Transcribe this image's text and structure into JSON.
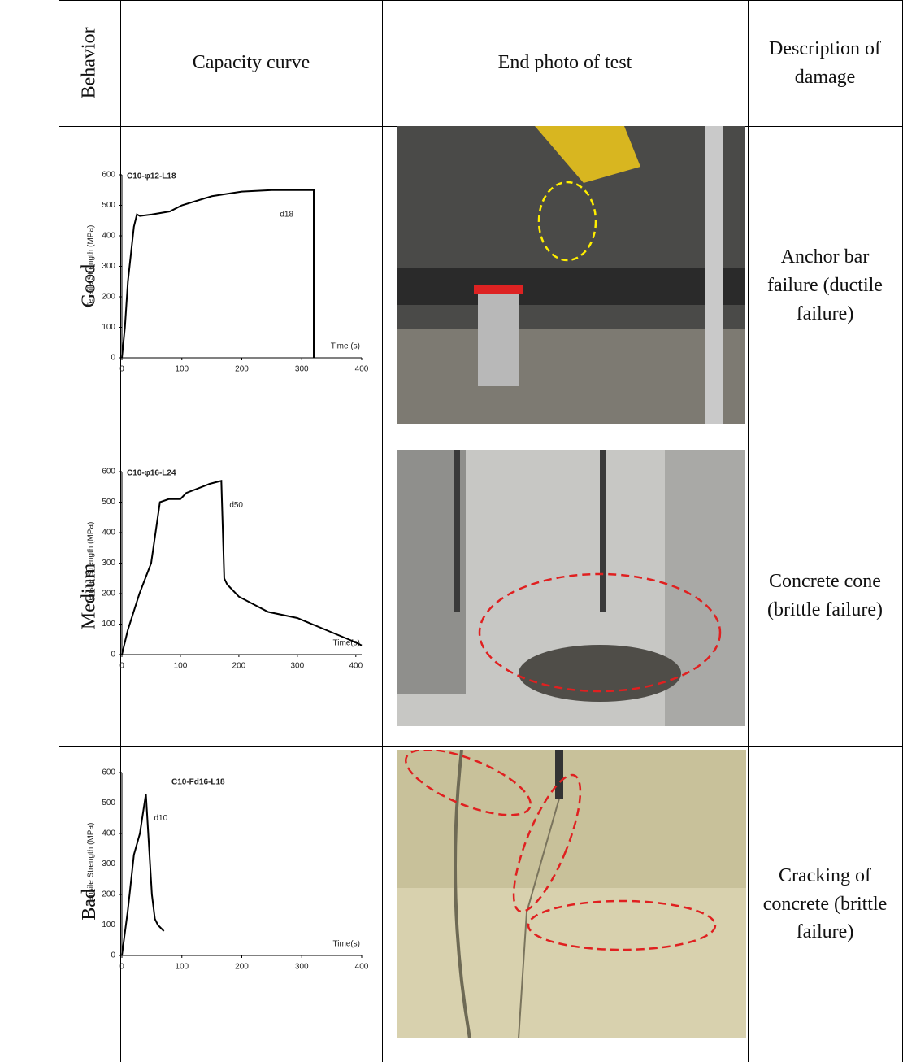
{
  "table": {
    "header": [
      "Behavior",
      "Capacity curve",
      "End photo of test",
      "Description of damage"
    ],
    "rows": [
      {
        "behavior": "Good",
        "description": "Anchor bar failure (ductile failure)",
        "chart": {
          "type": "line",
          "title": "C10-φ12-L18",
          "y_label": "Tensile Strength (MPa)",
          "x_label": "Time (s)",
          "annotation": "d18",
          "xlim": [
            0,
            400
          ],
          "ylim": [
            0,
            600
          ],
          "xticks": [
            0,
            100,
            200,
            300,
            400
          ],
          "yticks": [
            0,
            100,
            200,
            300,
            400,
            500,
            600
          ],
          "x": [
            0,
            5,
            10,
            20,
            25,
            30,
            50,
            80,
            100,
            150,
            200,
            250,
            300,
            320,
            320
          ],
          "values": [
            0,
            100,
            250,
            430,
            470,
            465,
            470,
            480,
            500,
            530,
            545,
            550,
            550,
            550,
            0
          ]
        }
      },
      {
        "behavior": "Medium",
        "description": "Concrete cone (brittle failure)",
        "chart": {
          "type": "line",
          "title": "C10-φ16-L24",
          "y_label": "Tensile Strength (MPa)",
          "x_label": "Time(s)",
          "annotation": "d50",
          "xlim": [
            0,
            410
          ],
          "ylim": [
            0,
            600
          ],
          "xticks": [
            0,
            100,
            200,
            300,
            400
          ],
          "yticks": [
            0,
            100,
            200,
            300,
            400,
            500,
            600
          ],
          "x": [
            0,
            10,
            30,
            50,
            65,
            80,
            100,
            110,
            150,
            170,
            175,
            180,
            200,
            250,
            300,
            350,
            400,
            410
          ],
          "values": [
            0,
            80,
            200,
            300,
            500,
            510,
            510,
            530,
            560,
            570,
            250,
            230,
            190,
            140,
            120,
            80,
            40,
            30
          ]
        }
      },
      {
        "behavior": "Bad",
        "description": "Cracking of concrete (brittle failure)",
        "chart": {
          "type": "line",
          "title": "C10-Fd16-L18",
          "y_label": "Tensile Strength (MPa)",
          "x_label": "Time(s)",
          "annotation": "d10",
          "xlim": [
            0,
            400
          ],
          "ylim": [
            0,
            600
          ],
          "xticks": [
            0,
            100,
            200,
            300,
            400
          ],
          "yticks": [
            0,
            100,
            200,
            300,
            400,
            500,
            600
          ],
          "x": [
            0,
            10,
            20,
            30,
            40,
            50,
            55,
            60,
            70
          ],
          "values": [
            0,
            150,
            330,
            400,
            530,
            200,
            120,
            100,
            80
          ]
        }
      }
    ]
  }
}
